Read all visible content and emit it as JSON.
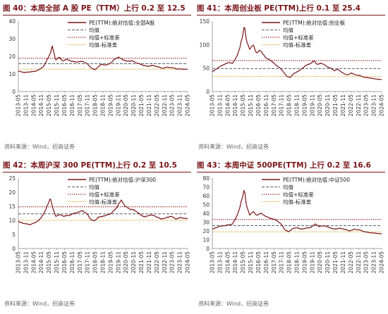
{
  "source_note": "资料来源：Wind，招商证券",
  "chart_data": [
    {
      "type": "line",
      "title": "图 40：本周全部 A 股 PE（TTM）上行 0.2 至 12.5",
      "ylim": [
        0,
        40
      ],
      "yticks": [
        0,
        10,
        20,
        30,
        40
      ],
      "x_tick_labels": [
        "2013-05",
        "2013-11",
        "2014-05",
        "2014-11",
        "2015-05",
        "2015-11",
        "2016-05",
        "2016-11",
        "2017-05",
        "2017-11",
        "2018-05",
        "2018-11",
        "2019-05",
        "2019-11",
        "2020-05",
        "2020-11",
        "2021-05",
        "2021-11",
        "2022-05",
        "2022-11",
        "2023-05",
        "2023-11",
        "2024-05"
      ],
      "legend": {
        "series": "PE(TTM):绝对估值:全部A股",
        "mean": "均值",
        "upper": "均值+标准差",
        "lower": "均值-标准差"
      },
      "mean": 15.8,
      "upper": 18.9,
      "lower": 12.7,
      "keypoints": [
        [
          0,
          11.5
        ],
        [
          0.04,
          10.8
        ],
        [
          0.07,
          11.2
        ],
        [
          0.1,
          11.5
        ],
        [
          0.13,
          12.8
        ],
        [
          0.15,
          14.5
        ],
        [
          0.17,
          18
        ],
        [
          0.19,
          22
        ],
        [
          0.2,
          26
        ],
        [
          0.21,
          22
        ],
        [
          0.22,
          18
        ],
        [
          0.24,
          19.5
        ],
        [
          0.26,
          17.5
        ],
        [
          0.29,
          18.2
        ],
        [
          0.32,
          17
        ],
        [
          0.35,
          16.8
        ],
        [
          0.38,
          17.2
        ],
        [
          0.41,
          15.5
        ],
        [
          0.43,
          13.5
        ],
        [
          0.45,
          12.3
        ],
        [
          0.47,
          13.8
        ],
        [
          0.49,
          15.5
        ],
        [
          0.52,
          15
        ],
        [
          0.55,
          16.5
        ],
        [
          0.57,
          18.5
        ],
        [
          0.59,
          19.5
        ],
        [
          0.61,
          18.5
        ],
        [
          0.64,
          17.2
        ],
        [
          0.67,
          17.5
        ],
        [
          0.7,
          16.2
        ],
        [
          0.73,
          15.2
        ],
        [
          0.76,
          14.3
        ],
        [
          0.79,
          14.8
        ],
        [
          0.82,
          14.2
        ],
        [
          0.85,
          13.2
        ],
        [
          0.88,
          13.8
        ],
        [
          0.91,
          13.5
        ],
        [
          0.94,
          12.8
        ],
        [
          0.97,
          12.8
        ],
        [
          1,
          12.5
        ]
      ]
    },
    {
      "type": "line",
      "title": "图 41：本周创业板 PE(TTM)上行 0.1 至 25.4",
      "ylim": [
        0,
        150
      ],
      "yticks": [
        0,
        50,
        100,
        150
      ],
      "x_tick_labels": [
        "2013-05",
        "2013-11",
        "2014-05",
        "2014-11",
        "2015-05",
        "2015-11",
        "2016-05",
        "2016-11",
        "2017-05",
        "2017-11",
        "2018-05",
        "2018-11",
        "2019-05",
        "2019-11",
        "2020-05",
        "2020-11",
        "2021-05",
        "2021-11",
        "2022-05",
        "2022-11",
        "2023-05",
        "2023-11",
        "2024-05"
      ],
      "legend": {
        "series": "PE(TTM):绝对估值:创业板",
        "mean": "均值",
        "upper": "均值+标准差",
        "lower": "均值-标准差"
      },
      "mean": 49,
      "upper": 66,
      "lower": 32,
      "keypoints": [
        [
          0,
          42
        ],
        [
          0.04,
          52
        ],
        [
          0.07,
          58
        ],
        [
          0.1,
          62
        ],
        [
          0.12,
          60
        ],
        [
          0.14,
          72
        ],
        [
          0.16,
          90
        ],
        [
          0.18,
          120
        ],
        [
          0.19,
          143
        ],
        [
          0.2,
          110
        ],
        [
          0.22,
          90
        ],
        [
          0.24,
          100
        ],
        [
          0.26,
          82
        ],
        [
          0.28,
          88
        ],
        [
          0.3,
          80
        ],
        [
          0.32,
          70
        ],
        [
          0.34,
          68
        ],
        [
          0.37,
          58
        ],
        [
          0.4,
          50
        ],
        [
          0.42,
          42
        ],
        [
          0.44,
          32
        ],
        [
          0.46,
          30
        ],
        [
          0.48,
          38
        ],
        [
          0.5,
          42
        ],
        [
          0.52,
          46
        ],
        [
          0.55,
          55
        ],
        [
          0.58,
          60
        ],
        [
          0.6,
          65
        ],
        [
          0.62,
          58
        ],
        [
          0.64,
          60
        ],
        [
          0.66,
          58
        ],
        [
          0.68,
          52
        ],
        [
          0.7,
          50
        ],
        [
          0.72,
          44
        ],
        [
          0.74,
          48
        ],
        [
          0.76,
          42
        ],
        [
          0.78,
          38
        ],
        [
          0.8,
          35
        ],
        [
          0.82,
          40
        ],
        [
          0.84,
          36
        ],
        [
          0.87,
          34
        ],
        [
          0.9,
          30
        ],
        [
          0.93,
          29
        ],
        [
          0.96,
          27
        ],
        [
          1,
          25.4
        ]
      ]
    },
    {
      "type": "line",
      "title": "图 42：本周沪深 300 PE(TTM)上行 0.2 至 10.5",
      "ylim": [
        0,
        25
      ],
      "yticks": [
        0,
        5,
        10,
        15,
        20,
        25
      ],
      "x_tick_labels": [
        "2013-05",
        "2013-11",
        "2014-05",
        "2014-11",
        "2015-05",
        "2015-11",
        "2016-05",
        "2016-11",
        "2017-05",
        "2017-11",
        "2018-05",
        "2018-11",
        "2019-05",
        "2019-11",
        "2020-05",
        "2020-11",
        "2021-05",
        "2021-11",
        "2022-05",
        "2022-11",
        "2023-05",
        "2023-11",
        "2024-05"
      ],
      "legend": {
        "series": "PE(TTM):绝对估值:沪深300",
        "mean": "均值",
        "upper": "均值+标准差",
        "lower": "均值-标准差"
      },
      "mean": 12.3,
      "upper": 14.8,
      "lower": 10.0,
      "keypoints": [
        [
          0,
          9.5
        ],
        [
          0.04,
          8.8
        ],
        [
          0.07,
          8.5
        ],
        [
          0.1,
          9.2
        ],
        [
          0.13,
          10.5
        ],
        [
          0.16,
          13.5
        ],
        [
          0.18,
          16.5
        ],
        [
          0.19,
          18
        ],
        [
          0.2,
          15
        ],
        [
          0.22,
          11.5
        ],
        [
          0.24,
          12
        ],
        [
          0.27,
          11.5
        ],
        [
          0.3,
          11.8
        ],
        [
          0.33,
          12.5
        ],
        [
          0.36,
          13
        ],
        [
          0.38,
          13.5
        ],
        [
          0.41,
          12
        ],
        [
          0.43,
          10.2
        ],
        [
          0.45,
          9.8
        ],
        [
          0.47,
          11
        ],
        [
          0.5,
          11.5
        ],
        [
          0.52,
          11.8
        ],
        [
          0.55,
          12.5
        ],
        [
          0.58,
          14.5
        ],
        [
          0.6,
          16.5
        ],
        [
          0.61,
          17.2
        ],
        [
          0.63,
          15
        ],
        [
          0.66,
          14
        ],
        [
          0.69,
          13.5
        ],
        [
          0.72,
          12
        ],
        [
          0.75,
          11.2
        ],
        [
          0.78,
          12
        ],
        [
          0.81,
          11.5
        ],
        [
          0.84,
          10.5
        ],
        [
          0.87,
          10.8
        ],
        [
          0.9,
          11.5
        ],
        [
          0.93,
          10.5
        ],
        [
          0.96,
          11
        ],
        [
          1,
          10.5
        ]
      ]
    },
    {
      "type": "line",
      "title": "图 43：本周中证 500PE(TTM) 上行 0.2 至 16.6",
      "ylim": [
        0,
        80
      ],
      "yticks": [
        0,
        10,
        20,
        30,
        40,
        50,
        60,
        70,
        80
      ],
      "x_tick_labels": [
        "2013-05",
        "2013-11",
        "2014-05",
        "2014-11",
        "2015-05",
        "2015-11",
        "2016-05",
        "2016-11",
        "2017-05",
        "2017-11",
        "2018-05",
        "2018-11",
        "2019-05",
        "2019-11",
        "2020-05",
        "2020-11",
        "2021-05",
        "2021-11",
        "2022-05",
        "2022-11",
        "2023-05",
        "2023-11",
        "2024-05"
      ],
      "legend": {
        "series": "PE(TTM):绝对估值:中证500",
        "mean": "均值",
        "upper": "均值+标准差",
        "lower": "均值-标准差"
      },
      "mean": 26,
      "upper": 33,
      "lower": 19,
      "keypoints": [
        [
          0,
          22
        ],
        [
          0.04,
          25
        ],
        [
          0.07,
          26
        ],
        [
          0.1,
          27
        ],
        [
          0.12,
          28
        ],
        [
          0.14,
          35
        ],
        [
          0.16,
          45
        ],
        [
          0.18,
          60
        ],
        [
          0.19,
          68
        ],
        [
          0.2,
          50
        ],
        [
          0.22,
          38
        ],
        [
          0.24,
          42
        ],
        [
          0.26,
          38
        ],
        [
          0.29,
          40
        ],
        [
          0.32,
          36
        ],
        [
          0.35,
          34
        ],
        [
          0.38,
          32
        ],
        [
          0.41,
          27
        ],
        [
          0.43,
          21
        ],
        [
          0.45,
          19
        ],
        [
          0.47,
          22
        ],
        [
          0.5,
          24
        ],
        [
          0.52,
          22
        ],
        [
          0.55,
          23
        ],
        [
          0.58,
          24
        ],
        [
          0.61,
          28
        ],
        [
          0.63,
          25
        ],
        [
          0.66,
          26
        ],
        [
          0.69,
          24
        ],
        [
          0.72,
          22
        ],
        [
          0.75,
          23
        ],
        [
          0.78,
          22
        ],
        [
          0.81,
          20
        ],
        [
          0.84,
          22
        ],
        [
          0.87,
          21
        ],
        [
          0.9,
          19
        ],
        [
          0.93,
          18
        ],
        [
          0.96,
          17.5
        ],
        [
          1,
          16.6
        ]
      ]
    }
  ]
}
